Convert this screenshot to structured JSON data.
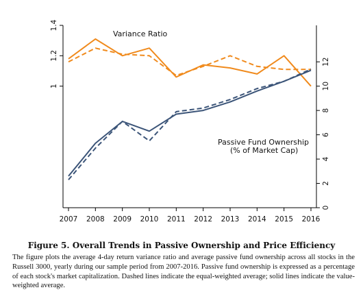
{
  "chart_data": {
    "type": "line",
    "x": [
      2007,
      2008,
      2009,
      2010,
      2011,
      2012,
      2013,
      2014,
      2015,
      2016
    ],
    "xlim": [
      2007,
      2016
    ],
    "grid": false,
    "left_axis": {
      "ylim": [
        0.2,
        1.4
      ],
      "ticks": [
        1,
        1.2,
        1.4
      ],
      "tick_labels": [
        "1",
        "1.2",
        "1.4"
      ]
    },
    "right_axis": {
      "ylim": [
        0,
        15
      ],
      "ticks": [
        0,
        2,
        4,
        6,
        8,
        10,
        12
      ],
      "tick_labels": [
        "0",
        "2",
        "4",
        "6",
        "8",
        "10",
        "12"
      ]
    },
    "x_tick_labels": [
      "2007",
      "2008",
      "2009",
      "2010",
      "2011",
      "2012",
      "2013",
      "2014",
      "2015",
      "2016"
    ],
    "series": [
      {
        "group": "Variance Ratio",
        "axis": "left",
        "style": "solid",
        "color": "#F08A1C",
        "values": [
          1.18,
          1.31,
          1.2,
          1.25,
          1.06,
          1.14,
          1.12,
          1.08,
          1.2,
          1.0
        ]
      },
      {
        "group": "Variance Ratio",
        "axis": "left",
        "style": "dashed",
        "color": "#F08A1C",
        "values": [
          1.16,
          1.25,
          1.21,
          1.2,
          1.07,
          1.13,
          1.2,
          1.13,
          1.11,
          1.11
        ]
      },
      {
        "group": "Passive Fund Ownership",
        "axis": "right",
        "style": "solid",
        "color": "#3B5478",
        "values": [
          2.6,
          5.3,
          7.1,
          6.3,
          7.7,
          8.0,
          8.7,
          9.6,
          10.4,
          11.3
        ]
      },
      {
        "group": "Passive Fund Ownership",
        "axis": "right",
        "style": "dashed",
        "color": "#3B5478",
        "values": [
          2.3,
          4.9,
          7.1,
          5.5,
          7.9,
          8.2,
          8.9,
          9.8,
          10.4,
          11.4
        ]
      }
    ],
    "annotations": {
      "variance_ratio": "Variance Ratio",
      "ownership_line1": "Passive Fund Ownership",
      "ownership_line2": "(% of Market Cap)"
    }
  },
  "caption": {
    "title": "Figure 5. Overall Trends in Passive Ownership and Price Efficiency",
    "body": "The figure plots the average 4-day return variance ratio and average passive fund ownership across all stocks in the Russell 3000, yearly during our sample period from 2007-2016. Passive fund ownership is expressed as a percentage of each stock's market capitalization. Dashed lines indicate the equal-weighted average; solid lines indicate the value-weighted average."
  }
}
